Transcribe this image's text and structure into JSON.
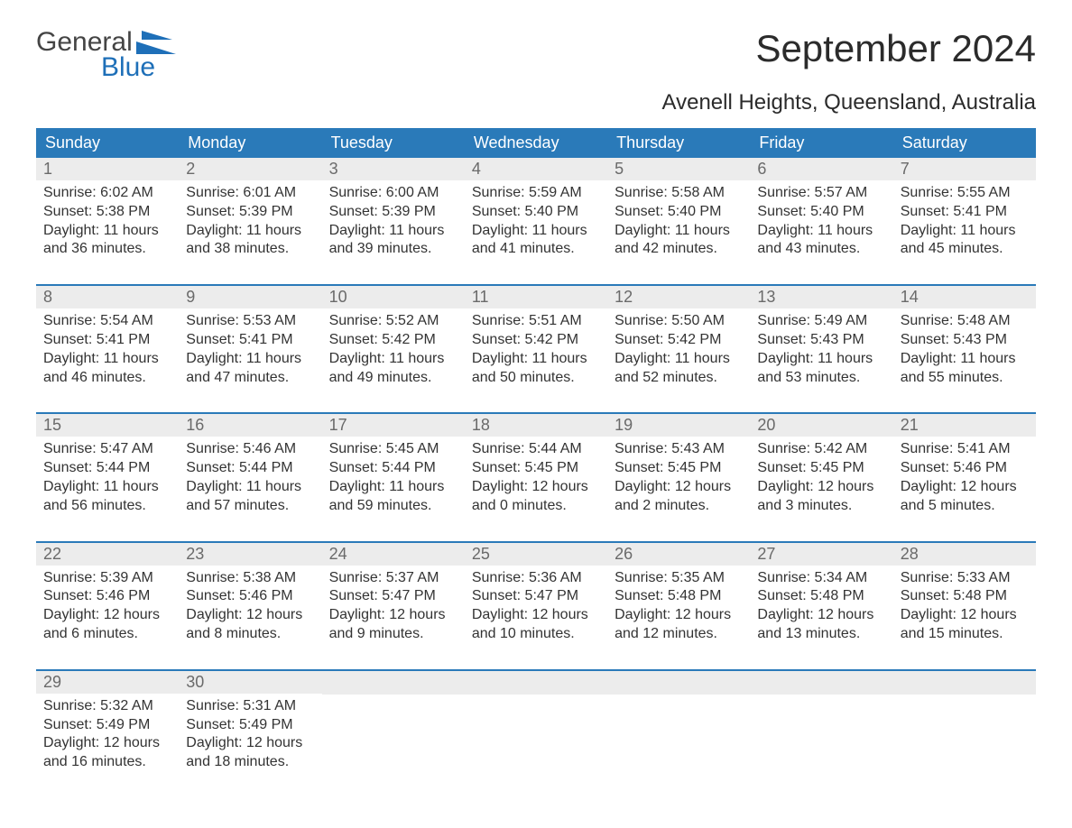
{
  "logo": {
    "part1": "General",
    "part2": "Blue"
  },
  "title": "September 2024",
  "location": "Avenell Heights, Queensland, Australia",
  "colors": {
    "header_bg": "#2a7ab9",
    "header_text": "#ffffff",
    "daynum_bg": "#ececec",
    "daynum_text": "#6a6a6a",
    "body_text": "#333333",
    "border": "#2a7ab9",
    "logo_blue": "#1e6fb8"
  },
  "day_names": [
    "Sunday",
    "Monday",
    "Tuesday",
    "Wednesday",
    "Thursday",
    "Friday",
    "Saturday"
  ],
  "weeks": [
    [
      {
        "n": "1",
        "sunrise": "6:02 AM",
        "sunset": "5:38 PM",
        "dh": "11",
        "dm": "36"
      },
      {
        "n": "2",
        "sunrise": "6:01 AM",
        "sunset": "5:39 PM",
        "dh": "11",
        "dm": "38"
      },
      {
        "n": "3",
        "sunrise": "6:00 AM",
        "sunset": "5:39 PM",
        "dh": "11",
        "dm": "39"
      },
      {
        "n": "4",
        "sunrise": "5:59 AM",
        "sunset": "5:40 PM",
        "dh": "11",
        "dm": "41"
      },
      {
        "n": "5",
        "sunrise": "5:58 AM",
        "sunset": "5:40 PM",
        "dh": "11",
        "dm": "42"
      },
      {
        "n": "6",
        "sunrise": "5:57 AM",
        "sunset": "5:40 PM",
        "dh": "11",
        "dm": "43"
      },
      {
        "n": "7",
        "sunrise": "5:55 AM",
        "sunset": "5:41 PM",
        "dh": "11",
        "dm": "45"
      }
    ],
    [
      {
        "n": "8",
        "sunrise": "5:54 AM",
        "sunset": "5:41 PM",
        "dh": "11",
        "dm": "46"
      },
      {
        "n": "9",
        "sunrise": "5:53 AM",
        "sunset": "5:41 PM",
        "dh": "11",
        "dm": "47"
      },
      {
        "n": "10",
        "sunrise": "5:52 AM",
        "sunset": "5:42 PM",
        "dh": "11",
        "dm": "49"
      },
      {
        "n": "11",
        "sunrise": "5:51 AM",
        "sunset": "5:42 PM",
        "dh": "11",
        "dm": "50"
      },
      {
        "n": "12",
        "sunrise": "5:50 AM",
        "sunset": "5:42 PM",
        "dh": "11",
        "dm": "52"
      },
      {
        "n": "13",
        "sunrise": "5:49 AM",
        "sunset": "5:43 PM",
        "dh": "11",
        "dm": "53"
      },
      {
        "n": "14",
        "sunrise": "5:48 AM",
        "sunset": "5:43 PM",
        "dh": "11",
        "dm": "55"
      }
    ],
    [
      {
        "n": "15",
        "sunrise": "5:47 AM",
        "sunset": "5:44 PM",
        "dh": "11",
        "dm": "56"
      },
      {
        "n": "16",
        "sunrise": "5:46 AM",
        "sunset": "5:44 PM",
        "dh": "11",
        "dm": "57"
      },
      {
        "n": "17",
        "sunrise": "5:45 AM",
        "sunset": "5:44 PM",
        "dh": "11",
        "dm": "59"
      },
      {
        "n": "18",
        "sunrise": "5:44 AM",
        "sunset": "5:45 PM",
        "dh": "12",
        "dm": "0"
      },
      {
        "n": "19",
        "sunrise": "5:43 AM",
        "sunset": "5:45 PM",
        "dh": "12",
        "dm": "2"
      },
      {
        "n": "20",
        "sunrise": "5:42 AM",
        "sunset": "5:45 PM",
        "dh": "12",
        "dm": "3"
      },
      {
        "n": "21",
        "sunrise": "5:41 AM",
        "sunset": "5:46 PM",
        "dh": "12",
        "dm": "5"
      }
    ],
    [
      {
        "n": "22",
        "sunrise": "5:39 AM",
        "sunset": "5:46 PM",
        "dh": "12",
        "dm": "6"
      },
      {
        "n": "23",
        "sunrise": "5:38 AM",
        "sunset": "5:46 PM",
        "dh": "12",
        "dm": "8"
      },
      {
        "n": "24",
        "sunrise": "5:37 AM",
        "sunset": "5:47 PM",
        "dh": "12",
        "dm": "9"
      },
      {
        "n": "25",
        "sunrise": "5:36 AM",
        "sunset": "5:47 PM",
        "dh": "12",
        "dm": "10"
      },
      {
        "n": "26",
        "sunrise": "5:35 AM",
        "sunset": "5:48 PM",
        "dh": "12",
        "dm": "12"
      },
      {
        "n": "27",
        "sunrise": "5:34 AM",
        "sunset": "5:48 PM",
        "dh": "12",
        "dm": "13"
      },
      {
        "n": "28",
        "sunrise": "5:33 AM",
        "sunset": "5:48 PM",
        "dh": "12",
        "dm": "15"
      }
    ],
    [
      {
        "n": "29",
        "sunrise": "5:32 AM",
        "sunset": "5:49 PM",
        "dh": "12",
        "dm": "16"
      },
      {
        "n": "30",
        "sunrise": "5:31 AM",
        "sunset": "5:49 PM",
        "dh": "12",
        "dm": "18"
      },
      null,
      null,
      null,
      null,
      null
    ]
  ],
  "labels": {
    "sunrise": "Sunrise:",
    "sunset": "Sunset:",
    "daylight_prefix": "Daylight:",
    "hours_word": "hours",
    "and_word": "and",
    "minutes_word": "minutes."
  }
}
